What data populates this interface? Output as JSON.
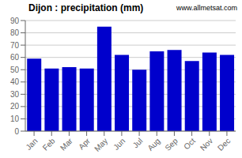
{
  "chart_data": {
    "type": "bar",
    "title": "Dijon : precipitation (mm)",
    "categories": [
      "Jan",
      "Feb",
      "Mar",
      "Apr",
      "May",
      "Jun",
      "Jul",
      "Aug",
      "Sep",
      "Oct",
      "Nov",
      "Dec"
    ],
    "values": [
      59,
      51,
      52,
      51,
      85,
      62,
      50,
      65,
      66,
      57,
      64,
      62
    ],
    "color": "#0000cc",
    "ylim": [
      0,
      90
    ],
    "yticks": [
      0,
      10,
      20,
      30,
      40,
      50,
      60,
      70,
      80,
      90
    ],
    "grid": true,
    "annotations": [
      "www.allmetsat.com"
    ]
  }
}
